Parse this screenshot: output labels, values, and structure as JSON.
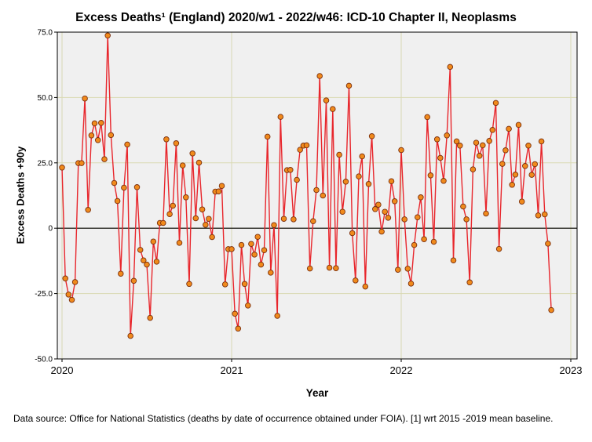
{
  "chart_data": {
    "type": "line",
    "title": "Excess Deaths¹ (England) 2020/w1 - 2022/w46: ICD-10 Chapter II, Neoplasms",
    "xlabel": "Year",
    "ylabel": "Excess Deaths +90y",
    "footnote": "Data source: Office for National Statistics (deaths by date of occurrence obtained under FOIA). [1] wrt 2015 -2019 mean baseline.",
    "xlim": [
      2020,
      2023
    ],
    "ylim": [
      -50,
      75
    ],
    "x_ticks": [
      2020,
      2021,
      2022,
      2023
    ],
    "x_tick_labels": [
      "2020",
      "2021",
      "2022",
      "2023"
    ],
    "y_ticks": [
      -50,
      -25,
      0,
      25,
      50,
      75
    ],
    "y_tick_labels": [
      "-50.0",
      "-25.0",
      "0",
      "25.0",
      "50.0",
      "75.0"
    ],
    "grid": true,
    "reference_line": 0,
    "colors": {
      "line": "#e8262c",
      "marker_fill": "#f08a1c",
      "marker_edge": "#7a2e0c",
      "plot_background": "#f0f0f0",
      "grid": "#d9d9b3"
    },
    "series": [
      {
        "x_start": "2020/w1",
        "x_end": "2022/w46",
        "values": [
          23.2,
          -19.2,
          -25.4,
          -27.4,
          -20.6,
          24.9,
          24.9,
          49.6,
          7.0,
          35.5,
          40.1,
          33.7,
          40.3,
          26.4,
          73.7,
          35.6,
          17.3,
          10.4,
          -17.4,
          15.5,
          32.0,
          -41.2,
          -20.1,
          15.7,
          -8.3,
          -12.3,
          -13.9,
          -34.3,
          -5.1,
          -12.8,
          2.0,
          2.0,
          34.0,
          5.4,
          8.6,
          32.5,
          -5.6,
          24.0,
          11.8,
          -21.3,
          28.6,
          3.8,
          25.1,
          7.2,
          1.3,
          3.6,
          -3.4,
          14.0,
          14.1,
          16.2,
          -21.5,
          -8.0,
          -8.0,
          -32.7,
          -38.4,
          -6.4,
          -21.3,
          -29.6,
          -6.0,
          -10.1,
          -3.3,
          -13.9,
          -8.4,
          35.0,
          -17.0,
          1.2,
          -33.5,
          42.6,
          3.6,
          22.2,
          22.3,
          3.4,
          18.5,
          30.0,
          31.6,
          31.7,
          -15.4,
          2.7,
          14.6,
          58.2,
          12.5,
          48.9,
          -15.1,
          45.6,
          -15.3,
          28.1,
          6.3,
          17.8,
          54.5,
          -1.9,
          -20.0,
          19.8,
          27.5,
          -22.3,
          16.9,
          35.2,
          7.3,
          9.0,
          -1.3,
          6.3,
          4.0,
          18.0,
          10.3,
          -15.9,
          29.9,
          3.4,
          -15.5,
          -21.2,
          -6.4,
          4.2,
          11.8,
          -4.2,
          42.5,
          20.2,
          -5.2,
          34.0,
          26.9,
          18.1,
          35.5,
          61.7,
          -12.3,
          33.2,
          31.6,
          8.3,
          3.4,
          -20.7,
          22.5,
          32.7,
          27.7,
          31.7,
          5.6,
          33.4,
          37.6,
          47.9,
          -7.9,
          24.6,
          29.8,
          38.0,
          16.6,
          20.5,
          39.5,
          10.2,
          23.8,
          31.6,
          20.4,
          24.5,
          4.9,
          33.2,
          5.3,
          -5.9,
          -31.3
        ]
      }
    ]
  }
}
